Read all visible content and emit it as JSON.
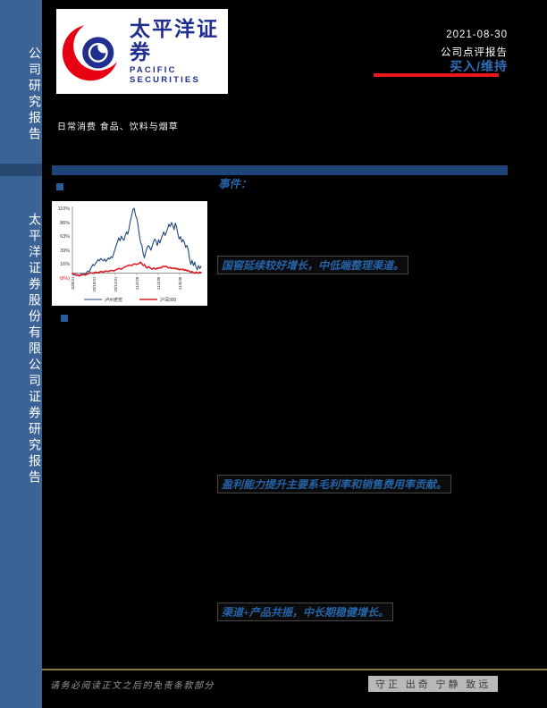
{
  "colors": {
    "page_bg": "#000000",
    "sidebar": "#3b6396",
    "sidebar_divider": "#28496f",
    "blue_bar": "#1e4377",
    "accent_red": "#e8191c",
    "rating_blue": "#2d6fb7",
    "heading_blue": "#2563a8",
    "logo_blue": "#202f8f",
    "logo_red": "#e60012",
    "footer_line": "#8c7b45"
  },
  "sidebar": {
    "top_label": "公司研究报告",
    "bottom_label": "太平洋证券股份有限公司证券研究报告"
  },
  "logo": {
    "cn": "太平洋证券",
    "en": "PACIFIC SECURITIES"
  },
  "header": {
    "date": "2021-08-30",
    "report_type": "公司点评报告",
    "rating": "买入/维持",
    "category": "日常消费 食品、饮料与烟草"
  },
  "sections": {
    "event_label": "事件：",
    "point1": "国窖延续较好增长，中低端整理渠道。",
    "point2": "盈利能力提升主要系毛利率和销售费用率贡献。",
    "point3": "渠道+产品共振，中长期稳健增长。"
  },
  "chart_data": {
    "type": "line",
    "title": "",
    "xlabel": "",
    "ylabel": "",
    "ylim": [
      -8,
      110
    ],
    "y_ticks": [
      "110%",
      "86%",
      "63%",
      "39%",
      "16%",
      "(8%)"
    ],
    "y_tick_values": [
      110,
      86,
      63,
      39,
      16,
      -8
    ],
    "x_ticks": [
      "20/8/31",
      "20/10/31",
      "20/12/31",
      "21/2/28",
      "21/4/30",
      "21/6/30"
    ],
    "x_tick_fracs": [
      0,
      16.7,
      33.3,
      50,
      66.7,
      83.3
    ],
    "legend_position": "bottom",
    "grid": false,
    "series": [
      {
        "name": "泸州老窖",
        "color": "#1f4778",
        "width": 1.1,
        "points": [
          [
            0,
            0
          ],
          [
            1,
            -3
          ],
          [
            2,
            -1
          ],
          [
            3,
            -4
          ],
          [
            4,
            -2
          ],
          [
            5,
            -5
          ],
          [
            6,
            -3
          ],
          [
            7,
            -1
          ],
          [
            8,
            -3
          ],
          [
            9,
            0
          ],
          [
            10,
            -2
          ],
          [
            11,
            1
          ],
          [
            12,
            4
          ],
          [
            13,
            2
          ],
          [
            14,
            7
          ],
          [
            15,
            11
          ],
          [
            16,
            15
          ],
          [
            17,
            13
          ],
          [
            18,
            17
          ],
          [
            19,
            20
          ],
          [
            20,
            23
          ],
          [
            21,
            21
          ],
          [
            22,
            25
          ],
          [
            23,
            23
          ],
          [
            24,
            21
          ],
          [
            25,
            24
          ],
          [
            26,
            20
          ],
          [
            27,
            23
          ],
          [
            28,
            26
          ],
          [
            29,
            24
          ],
          [
            30,
            28
          ],
          [
            31,
            26
          ],
          [
            32,
            33
          ],
          [
            33,
            40
          ],
          [
            34,
            47
          ],
          [
            35,
            53
          ],
          [
            36,
            60
          ],
          [
            37,
            55
          ],
          [
            38,
            63
          ],
          [
            39,
            58
          ],
          [
            40,
            56
          ],
          [
            41,
            63
          ],
          [
            42,
            70
          ],
          [
            43,
            66
          ],
          [
            44,
            76
          ],
          [
            45,
            88
          ],
          [
            46,
            97
          ],
          [
            47,
            108
          ],
          [
            48,
            110
          ],
          [
            49,
            98
          ],
          [
            50,
            93
          ],
          [
            51,
            82
          ],
          [
            52,
            65
          ],
          [
            53,
            52
          ],
          [
            54,
            47
          ],
          [
            55,
            33
          ],
          [
            56,
            26
          ],
          [
            57,
            36
          ],
          [
            58,
            43
          ],
          [
            59,
            47
          ],
          [
            60,
            44
          ],
          [
            61,
            39
          ],
          [
            62,
            46
          ],
          [
            63,
            53
          ],
          [
            64,
            58
          ],
          [
            65,
            54
          ],
          [
            66,
            47
          ],
          [
            67,
            57
          ],
          [
            68,
            51
          ],
          [
            69,
            59
          ],
          [
            70,
            64
          ],
          [
            71,
            70
          ],
          [
            72,
            64
          ],
          [
            73,
            69
          ],
          [
            74,
            76
          ],
          [
            75,
            83
          ],
          [
            76,
            79
          ],
          [
            77,
            86
          ],
          [
            78,
            81
          ],
          [
            79,
            74
          ],
          [
            80,
            85
          ],
          [
            81,
            78
          ],
          [
            82,
            66
          ],
          [
            83,
            58
          ],
          [
            84,
            62
          ],
          [
            85,
            53
          ],
          [
            86,
            57
          ],
          [
            87,
            52
          ],
          [
            88,
            44
          ],
          [
            89,
            47
          ],
          [
            90,
            40
          ],
          [
            91,
            25
          ],
          [
            92,
            15
          ],
          [
            93,
            22
          ],
          [
            94,
            13
          ],
          [
            95,
            19
          ],
          [
            96,
            11
          ],
          [
            97,
            6
          ],
          [
            98,
            13
          ],
          [
            99,
            8
          ],
          [
            100,
            12
          ]
        ]
      },
      {
        "name": "沪深300",
        "color": "#e01f26",
        "width": 1.6,
        "points": [
          [
            0,
            0
          ],
          [
            2,
            -2
          ],
          [
            4,
            -3
          ],
          [
            6,
            -4
          ],
          [
            8,
            -2
          ],
          [
            10,
            -3
          ],
          [
            12,
            -1
          ],
          [
            14,
            1
          ],
          [
            16,
            0
          ],
          [
            18,
            2
          ],
          [
            20,
            1
          ],
          [
            22,
            3
          ],
          [
            24,
            2
          ],
          [
            26,
            4
          ],
          [
            28,
            3
          ],
          [
            30,
            5
          ],
          [
            32,
            4
          ],
          [
            34,
            6
          ],
          [
            36,
            8
          ],
          [
            38,
            7
          ],
          [
            40,
            10
          ],
          [
            42,
            12
          ],
          [
            44,
            14
          ],
          [
            46,
            13
          ],
          [
            48,
            16
          ],
          [
            50,
            15
          ],
          [
            52,
            17
          ],
          [
            53,
            19
          ],
          [
            54,
            16
          ],
          [
            55,
            13
          ],
          [
            56,
            15
          ],
          [
            57,
            11
          ],
          [
            58,
            9
          ],
          [
            59,
            11
          ],
          [
            60,
            10
          ],
          [
            61,
            8
          ],
          [
            62,
            7
          ],
          [
            63,
            9
          ],
          [
            64,
            8
          ],
          [
            65,
            7
          ],
          [
            66,
            9
          ],
          [
            67,
            8
          ],
          [
            68,
            10
          ],
          [
            69,
            9
          ],
          [
            70,
            11
          ],
          [
            71,
            12
          ],
          [
            72,
            11
          ],
          [
            73,
            12
          ],
          [
            74,
            10
          ],
          [
            75,
            9
          ],
          [
            76,
            10
          ],
          [
            77,
            8
          ],
          [
            78,
            9
          ],
          [
            79,
            8
          ],
          [
            80,
            9
          ],
          [
            81,
            7
          ],
          [
            82,
            8
          ],
          [
            83,
            6
          ],
          [
            84,
            7
          ],
          [
            85,
            6
          ],
          [
            86,
            7
          ],
          [
            87,
            5
          ],
          [
            88,
            6
          ],
          [
            89,
            4
          ],
          [
            90,
            5
          ],
          [
            91,
            3
          ],
          [
            92,
            2
          ],
          [
            93,
            3
          ],
          [
            94,
            1
          ],
          [
            95,
            0
          ],
          [
            96,
            2
          ],
          [
            97,
            1
          ],
          [
            98,
            0
          ],
          [
            99,
            2
          ],
          [
            100,
            1
          ]
        ]
      }
    ]
  },
  "footer": {
    "disclaimer": "请务必阅读正文之后的免责条款部分",
    "motto": "守正 出奇 宁静 致远"
  }
}
